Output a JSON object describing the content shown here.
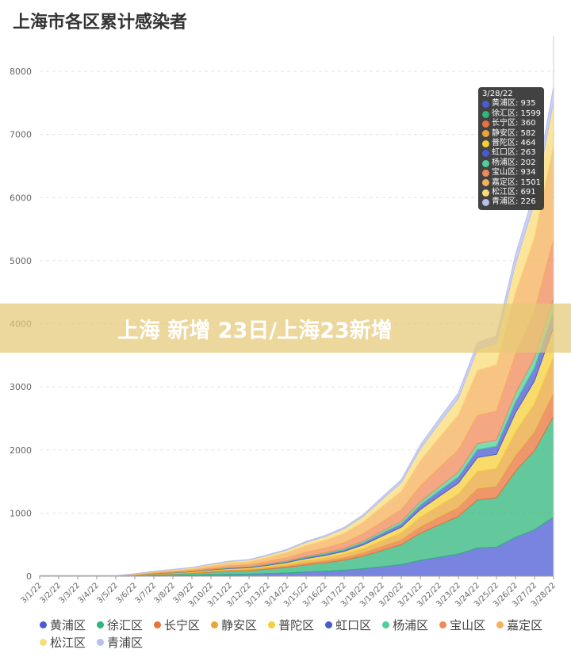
{
  "chart_data": {
    "type": "area",
    "stacked": true,
    "title": "上海市各区累计感染者",
    "xlabel": "",
    "ylabel": "",
    "ylim": [
      0,
      8000
    ],
    "yticks": [
      "0",
      "1000",
      "2000",
      "3000",
      "4000",
      "5000",
      "6000",
      "7000",
      "8000"
    ],
    "grid": true,
    "legend_position": "bottom",
    "categories": [
      "3/1/22",
      "3/2/22",
      "3/3/22",
      "3/4/22",
      "3/5/22",
      "3/6/22",
      "3/7/22",
      "3/8/22",
      "3/9/22",
      "3/10/22",
      "3/11/22",
      "3/12/22",
      "3/13/22",
      "3/14/22",
      "3/15/22",
      "3/16/22",
      "3/17/22",
      "3/18/22",
      "3/19/22",
      "3/20/22",
      "3/21/22",
      "3/22/22",
      "3/23/22",
      "3/24/22",
      "3/25/22",
      "3/26/22",
      "3/27/22",
      "3/28/22"
    ],
    "series": [
      {
        "name": "黄浦区",
        "color": "#4b5bd6",
        "values": [
          1,
          1,
          1,
          1,
          1,
          5,
          9,
          13,
          17,
          23,
          29,
          32,
          41,
          51,
          66,
          78,
          94,
          118,
          151,
          184,
          251,
          301,
          350,
          446,
          458,
          614,
          735,
          935
        ]
      },
      {
        "name": "徐汇区",
        "color": "#2fb67a",
        "values": [
          2,
          2,
          2,
          2,
          2,
          8,
          16,
          22,
          29,
          40,
          50,
          54,
          70,
          88,
          114,
          133,
          160,
          201,
          259,
          315,
          429,
          515,
          598,
          763,
          784,
          1051,
          1257,
          1599
        ]
      },
      {
        "name": "长宁区",
        "color": "#e8743b",
        "values": [
          0,
          0,
          0,
          0,
          0,
          2,
          4,
          5,
          6,
          9,
          11,
          12,
          16,
          20,
          26,
          30,
          36,
          45,
          58,
          71,
          96,
          116,
          135,
          172,
          176,
          237,
          283,
          360
        ]
      },
      {
        "name": "静安区",
        "color": "#eaa53a",
        "values": [
          1,
          1,
          1,
          1,
          1,
          3,
          6,
          8,
          10,
          15,
          18,
          20,
          26,
          32,
          41,
          48,
          58,
          73,
          94,
          115,
          156,
          187,
          218,
          278,
          285,
          382,
          457,
          582
        ]
      },
      {
        "name": "普陀区",
        "color": "#f5cf3a",
        "values": [
          1,
          1,
          1,
          1,
          1,
          2,
          5,
          6,
          8,
          12,
          14,
          16,
          20,
          26,
          33,
          39,
          46,
          58,
          75,
          91,
          124,
          149,
          174,
          221,
          227,
          305,
          365,
          464
        ]
      },
      {
        "name": "虹口区",
        "color": "#4a5bd0",
        "values": [
          0,
          0,
          0,
          0,
          0,
          1,
          3,
          4,
          5,
          7,
          8,
          9,
          12,
          14,
          19,
          22,
          26,
          33,
          43,
          52,
          70,
          85,
          98,
          125,
          129,
          173,
          207,
          263
        ]
      },
      {
        "name": "杨浦区",
        "color": "#4fcf9a",
        "values": [
          0,
          0,
          0,
          0,
          0,
          1,
          2,
          3,
          4,
          5,
          6,
          7,
          9,
          11,
          14,
          17,
          20,
          25,
          33,
          40,
          54,
          65,
          76,
          96,
          99,
          133,
          159,
          202
        ]
      },
      {
        "name": "宝山区",
        "color": "#ef8a5a",
        "values": [
          1,
          1,
          1,
          1,
          1,
          5,
          9,
          13,
          17,
          23,
          29,
          32,
          41,
          51,
          66,
          78,
          93,
          118,
          151,
          184,
          250,
          301,
          349,
          446,
          458,
          614,
          734,
          934
        ]
      },
      {
        "name": "嘉定区",
        "color": "#f5b05a",
        "values": [
          2,
          2,
          2,
          2,
          2,
          8,
          15,
          21,
          27,
          38,
          47,
          51,
          66,
          83,
          107,
          125,
          150,
          189,
          243,
          296,
          402,
          483,
          561,
          716,
          735,
          986,
          1180,
          1501
        ]
      },
      {
        "name": "松江区",
        "color": "#f9dc7a",
        "values": [
          1,
          1,
          1,
          1,
          1,
          3,
          7,
          10,
          12,
          17,
          21,
          23,
          30,
          38,
          49,
          57,
          69,
          87,
          112,
          136,
          185,
          223,
          258,
          330,
          339,
          454,
          543,
          691
        ]
      },
      {
        "name": "青浦区",
        "color": "#b7c0f0",
        "values": [
          1,
          1,
          1,
          1,
          1,
          1,
          2,
          3,
          4,
          6,
          7,
          8,
          10,
          12,
          16,
          19,
          23,
          28,
          37,
          45,
          61,
          73,
          85,
          108,
          111,
          148,
          178,
          226
        ]
      }
    ],
    "tooltip": {
      "date": "3/28/22"
    }
  },
  "banner": {
    "text": "上海 新增 23日/上海23新增"
  }
}
